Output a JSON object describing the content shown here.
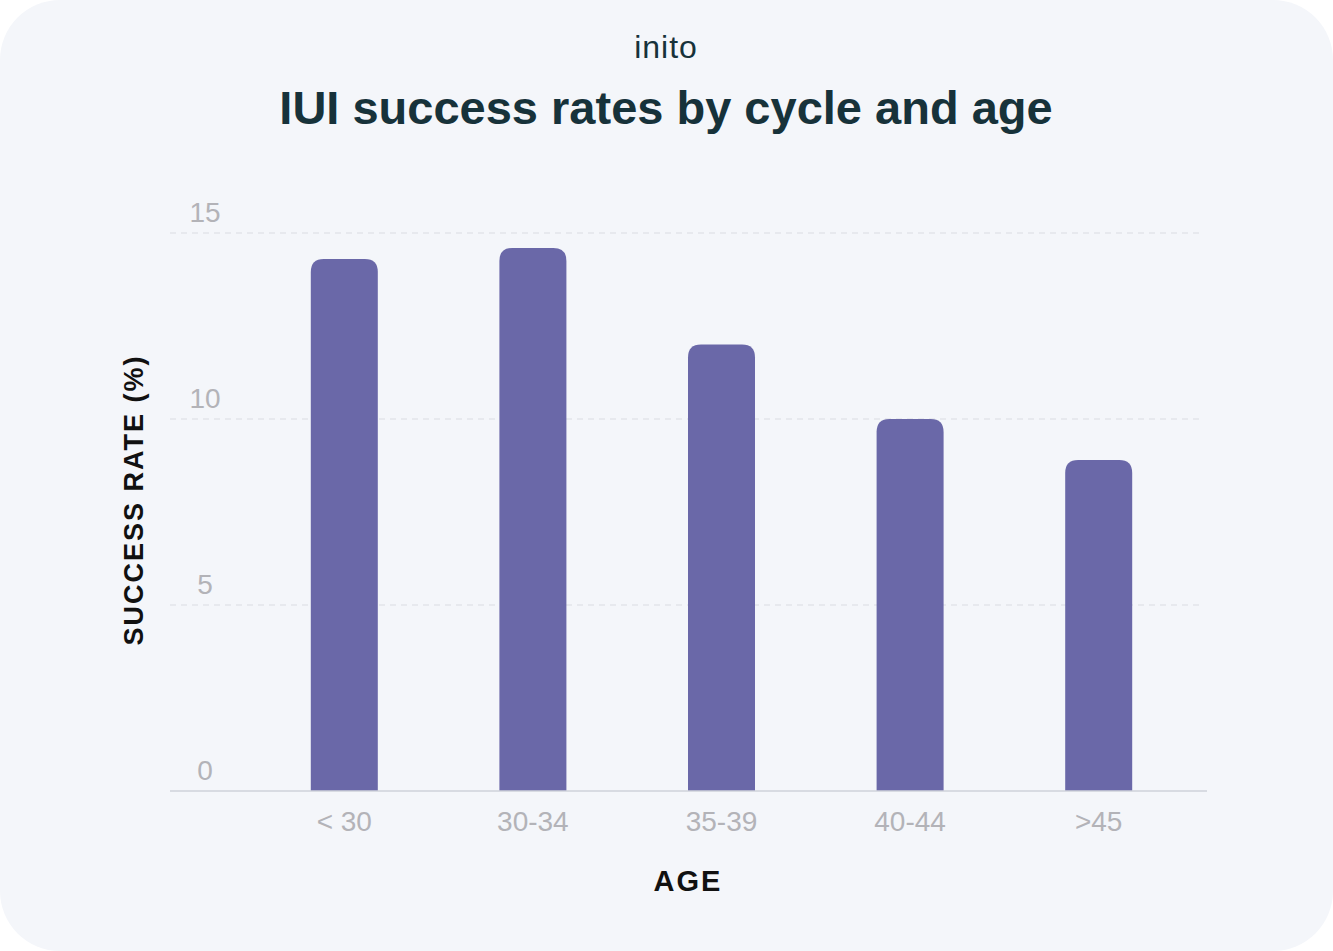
{
  "chart_data": {
    "type": "bar",
    "title": "IUI success rates by cycle and age",
    "annotations": [
      "inito"
    ],
    "x_label": "AGE",
    "y_label": "SUCCESS RATE (%)",
    "categories": [
      "< 30",
      "30-34",
      "35-39",
      "40-44",
      ">45"
    ],
    "values": [
      14.3,
      14.6,
      12.0,
      10.0,
      8.9
    ],
    "color": "#6a68a8",
    "ylim": [
      0,
      15
    ],
    "yticks": [
      0,
      5,
      10,
      15
    ],
    "grid": true
  }
}
